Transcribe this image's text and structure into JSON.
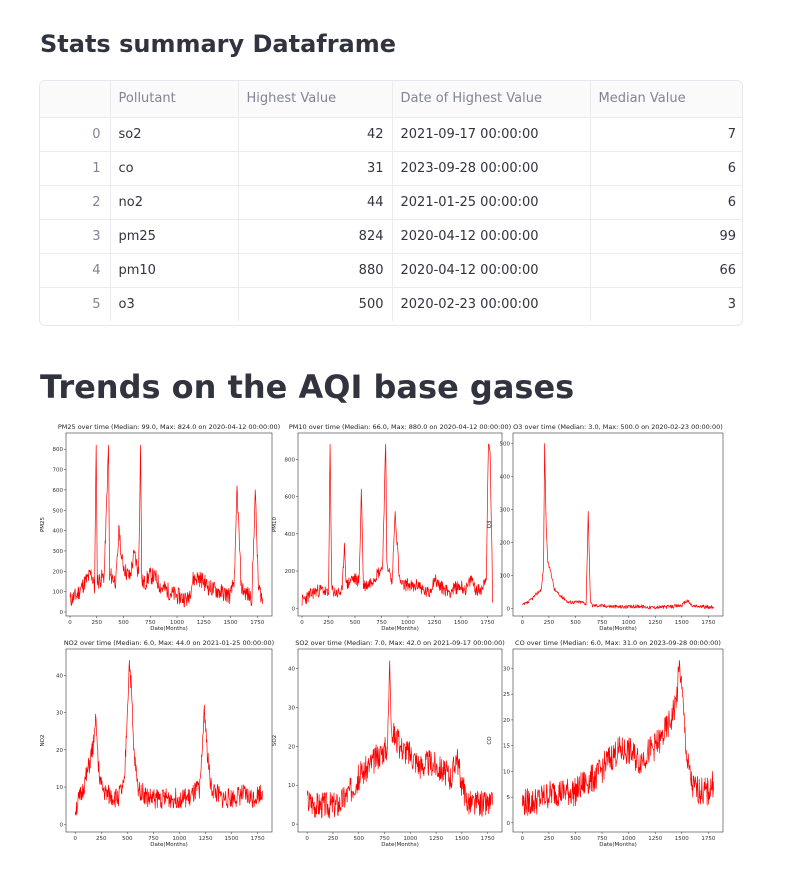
{
  "summary": {
    "title": "Stats summary Dataframe",
    "columns": [
      "",
      "Pollutant",
      "Highest Value",
      "Date of Highest Value",
      "Median Value"
    ],
    "rows": [
      {
        "index": "0",
        "pollutant": "so2",
        "highest": "42",
        "date": "2021-09-17 00:00:00",
        "median": "7"
      },
      {
        "index": "1",
        "pollutant": "co",
        "highest": "31",
        "date": "2023-09-28 00:00:00",
        "median": "6"
      },
      {
        "index": "2",
        "pollutant": "no2",
        "highest": "44",
        "date": "2021-01-25 00:00:00",
        "median": "6"
      },
      {
        "index": "3",
        "pollutant": "pm25",
        "highest": "824",
        "date": "2020-04-12 00:00:00",
        "median": "99"
      },
      {
        "index": "4",
        "pollutant": "pm10",
        "highest": "880",
        "date": "2020-04-12 00:00:00",
        "median": "66"
      },
      {
        "index": "5",
        "pollutant": "o3",
        "highest": "500",
        "date": "2020-02-23 00:00:00",
        "median": "3"
      }
    ]
  },
  "trends": {
    "title": "Trends on the AQI base gases"
  },
  "chart_data": [
    {
      "type": "line",
      "title": "PM25 over time (Median: 99.0, Max: 824.0 on 2020-04-12 00:00:00)",
      "xlabel": "Date(Months)",
      "ylabel": "PM25",
      "xlim": [
        0,
        1850
      ],
      "ylim": [
        0,
        860
      ],
      "xticks": [
        0,
        250,
        500,
        750,
        1000,
        1250,
        1500,
        1750
      ],
      "yticks": [
        0,
        100,
        200,
        300,
        400,
        500,
        600,
        700,
        800
      ],
      "color": "#ff0000",
      "base": 130,
      "amp": 60,
      "seed": 11,
      "x": [
        0,
        60,
        130,
        200,
        230,
        245,
        255,
        265,
        320,
        360,
        370,
        380,
        430,
        460,
        480,
        520,
        560,
        600,
        640,
        660,
        670,
        700,
        740,
        800,
        850,
        900,
        950,
        1000,
        1050,
        1100,
        1150,
        1200,
        1250,
        1300,
        1350,
        1400,
        1450,
        1500,
        1540,
        1560,
        1600,
        1650,
        1700,
        1730,
        1760,
        1790,
        1800
      ],
      "y": [
        60,
        80,
        140,
        190,
        120,
        820,
        160,
        150,
        180,
        820,
        160,
        180,
        150,
        420,
        260,
        200,
        170,
        290,
        190,
        820,
        150,
        140,
        180,
        170,
        120,
        110,
        90,
        80,
        70,
        60,
        160,
        170,
        150,
        120,
        110,
        100,
        90,
        80,
        180,
        620,
        120,
        90,
        70,
        600,
        120,
        80,
        40
      ],
      "grid": false
    },
    {
      "type": "line",
      "title": "PM10 over time (Median: 66.0, Max: 880.0 on 2020-04-12 00:00:00)",
      "xlabel": "Date(Months)",
      "ylabel": "PM10",
      "xlim": [
        0,
        1850
      ],
      "ylim": [
        -20,
        920
      ],
      "xticks": [
        0,
        250,
        500,
        750,
        1000,
        1250,
        1500,
        1750
      ],
      "yticks": [
        0,
        200,
        400,
        600,
        800
      ],
      "color": "#ff0000",
      "base": 80,
      "amp": 50,
      "seed": 23,
      "x": [
        0,
        50,
        120,
        200,
        250,
        265,
        280,
        330,
        380,
        400,
        420,
        470,
        540,
        560,
        580,
        630,
        700,
        760,
        790,
        800,
        820,
        850,
        880,
        920,
        950,
        1000,
        1050,
        1100,
        1150,
        1200,
        1250,
        1300,
        1350,
        1400,
        1450,
        1500,
        1550,
        1600,
        1650,
        1700,
        1740,
        1760,
        1775,
        1790,
        1800
      ],
      "y": [
        40,
        60,
        90,
        100,
        70,
        880,
        100,
        80,
        90,
        350,
        120,
        160,
        150,
        640,
        120,
        130,
        180,
        220,
        880,
        260,
        200,
        130,
        520,
        150,
        120,
        130,
        110,
        130,
        90,
        80,
        160,
        120,
        100,
        90,
        110,
        120,
        100,
        160,
        90,
        110,
        180,
        880,
        840,
        400,
        30
      ],
      "grid": false
    },
    {
      "type": "line",
      "title": "O3 over time (Median: 3.0, Max: 500.0 on 2020-02-23 00:00:00)",
      "xlabel": "Date(Months)",
      "ylabel": "O3",
      "xlim": [
        -50,
        1850
      ],
      "ylim": [
        -10,
        520
      ],
      "xticks": [
        0,
        250,
        500,
        750,
        1000,
        1250,
        1500,
        1750
      ],
      "yticks": [
        0,
        100,
        200,
        300,
        400,
        500
      ],
      "color": "#ff0000",
      "base": 12,
      "amp": 8,
      "seed": 37,
      "x": [
        0,
        60,
        120,
        180,
        200,
        210,
        225,
        240,
        270,
        300,
        350,
        400,
        430,
        560,
        600,
        620,
        640,
        660,
        700,
        800,
        900,
        1000,
        1100,
        1200,
        1300,
        1400,
        1500,
        1550,
        1600,
        1700,
        1800
      ],
      "y": [
        10,
        20,
        40,
        60,
        130,
        500,
        250,
        140,
        110,
        60,
        40,
        30,
        20,
        20,
        15,
        295,
        20,
        10,
        10,
        8,
        6,
        5,
        8,
        4,
        5,
        6,
        10,
        25,
        8,
        6,
        4
      ],
      "grid": false
    },
    {
      "type": "line",
      "title": "NO2 over time (Median: 6.0, Max: 44.0 on 2021-01-25 00:00:00)",
      "xlabel": "Date(Months)",
      "ylabel": "NO2",
      "xlim": [
        -50,
        1850
      ],
      "ylim": [
        -1,
        46
      ],
      "xticks": [
        0,
        250,
        500,
        750,
        1000,
        1250,
        1500,
        1750
      ],
      "yticks": [
        0,
        10,
        20,
        30,
        40
      ],
      "color": "#ff0000",
      "base": 7,
      "amp": 4,
      "seed": 51,
      "x": [
        0,
        60,
        120,
        180,
        200,
        220,
        250,
        300,
        400,
        470,
        500,
        520,
        540,
        560,
        600,
        700,
        800,
        900,
        1000,
        1100,
        1200,
        1240,
        1260,
        1300,
        1400,
        1500,
        1600,
        1700,
        1800
      ],
      "y": [
        4,
        8,
        14,
        22,
        28,
        16,
        10,
        8,
        7,
        10,
        30,
        44,
        36,
        20,
        10,
        7,
        7,
        7,
        7,
        7,
        10,
        32,
        22,
        10,
        7,
        7,
        8,
        7,
        9
      ],
      "grid": false
    },
    {
      "type": "line",
      "title": "SO2 over time (Median: 7.0, Max: 42.0 on 2021-09-17 00:00:00)",
      "xlabel": "Date(Months)",
      "ylabel": "SO2",
      "xlim": [
        -50,
        1850
      ],
      "ylim": [
        -1,
        44
      ],
      "xticks": [
        0,
        250,
        500,
        750,
        1000,
        1250,
        1500,
        1750
      ],
      "yticks": [
        0,
        10,
        20,
        30,
        40
      ],
      "color": "#ff0000",
      "base": 8,
      "amp": 5,
      "seed": 67,
      "x": [
        0,
        100,
        200,
        300,
        400,
        500,
        600,
        700,
        780,
        800,
        820,
        900,
        1000,
        1100,
        1200,
        1300,
        1400,
        1450,
        1500,
        1550,
        1600,
        1700,
        1800
      ],
      "y": [
        6,
        5,
        5,
        5,
        8,
        12,
        15,
        18,
        20,
        42,
        24,
        20,
        18,
        15,
        16,
        14,
        12,
        18,
        10,
        6,
        5,
        5,
        5
      ],
      "grid": false
    },
    {
      "type": "line",
      "title": "CO over time (Median: 6.0, Max: 31.0 on 2023-09-28 00:00:00)",
      "xlabel": "Date(Months)",
      "ylabel": "CO",
      "xlim": [
        -50,
        1850
      ],
      "ylim": [
        -1,
        33
      ],
      "xticks": [
        0,
        250,
        500,
        750,
        1000,
        1250,
        1500,
        1750
      ],
      "yticks": [
        0,
        5,
        10,
        15,
        20,
        25,
        30
      ],
      "color": "#ff0000",
      "base": 6,
      "amp": 4,
      "seed": 79,
      "x": [
        0,
        100,
        200,
        300,
        400,
        500,
        600,
        700,
        800,
        900,
        1000,
        1100,
        1200,
        1300,
        1400,
        1450,
        1480,
        1500,
        1550,
        1600,
        1700,
        1750,
        1800
      ],
      "y": [
        4,
        4,
        5,
        6,
        6,
        6,
        8,
        9,
        12,
        14,
        14,
        12,
        14,
        16,
        20,
        24,
        31,
        26,
        12,
        7,
        6,
        6,
        8
      ],
      "grid": false
    }
  ]
}
